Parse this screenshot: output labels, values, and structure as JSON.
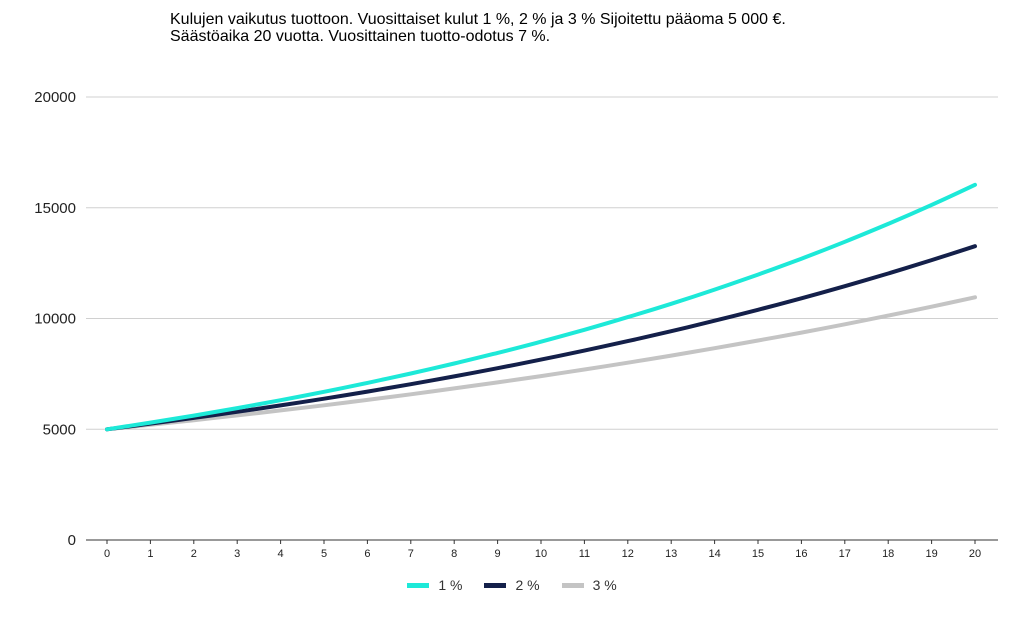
{
  "chart_data": {
    "type": "line",
    "title": "Kulujen vaikutus tuottoon. Vuosittaiset kulut 1 %, 2 % ja 3 % Sijoitettu pääoma 5 000 €.",
    "subtitle": "Säästöaika 20 vuotta. Vuosittainen tuotto-odotus 7 %.",
    "xlabel": "",
    "ylabel": "",
    "x": [
      0,
      1,
      2,
      3,
      4,
      5,
      6,
      7,
      8,
      9,
      10,
      11,
      12,
      13,
      14,
      15,
      16,
      17,
      18,
      19,
      20
    ],
    "ylim": [
      0,
      20000
    ],
    "yticks": [
      "0",
      "5000",
      "10000",
      "15000",
      "20000"
    ],
    "yticks_values": [
      0,
      5000,
      10000,
      15000,
      20000
    ],
    "grid": true,
    "legend": "bottom-center",
    "series": [
      {
        "name": "1 %",
        "color": "#1de9d8",
        "values": [
          5000,
          5300,
          5618,
          5955,
          6312,
          6691,
          7093,
          7518,
          7969,
          8447,
          8954,
          9491,
          10061,
          10665,
          11305,
          11983,
          12702,
          13464,
          14272,
          15128,
          16036
        ]
      },
      {
        "name": "2 %",
        "color": "#14204a",
        "values": [
          5000,
          5250,
          5513,
          5788,
          6078,
          6381,
          6700,
          7036,
          7387,
          7757,
          8144,
          8552,
          8979,
          9428,
          9900,
          10395,
          10914,
          11460,
          12033,
          12635,
          13266
        ]
      },
      {
        "name": "3 %",
        "color": "#c4c4c4",
        "values": [
          5000,
          5200,
          5408,
          5624,
          5849,
          6083,
          6327,
          6580,
          6843,
          7117,
          7401,
          7697,
          8005,
          8325,
          8658,
          9005,
          9365,
          9740,
          10129,
          10534,
          10956
        ]
      }
    ]
  }
}
